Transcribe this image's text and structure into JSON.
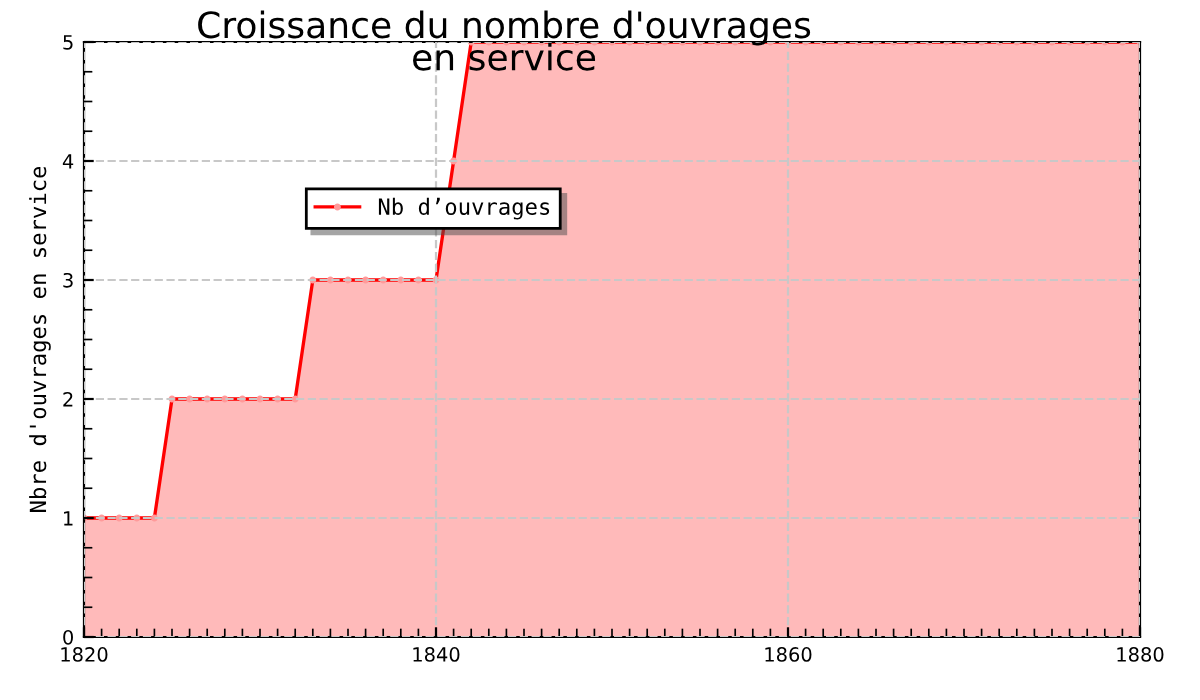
{
  "chart_data": {
    "type": "area",
    "title": "Croissance du nombre d'ouvrages\nen service",
    "ylabel": "Nbre d'ouvrages en service",
    "x": [
      1820,
      1821,
      1822,
      1823,
      1824,
      1825,
      1826,
      1827,
      1828,
      1829,
      1830,
      1831,
      1832,
      1833,
      1834,
      1835,
      1836,
      1837,
      1838,
      1839,
      1840,
      1841,
      1842,
      1843,
      1844,
      1845,
      1846,
      1847,
      1848,
      1849,
      1850,
      1851,
      1852,
      1853,
      1854,
      1855,
      1856,
      1857,
      1858,
      1859,
      1860,
      1861,
      1862,
      1863,
      1864,
      1865,
      1866,
      1867,
      1868,
      1869,
      1870,
      1871,
      1872,
      1873,
      1874,
      1875,
      1876,
      1877,
      1878,
      1879,
      1880
    ],
    "series": [
      {
        "name": "Nb d’ouvrages",
        "color": "#ff0000",
        "values": [
          1,
          1,
          1,
          1,
          1,
          2,
          2,
          2,
          2,
          2,
          2,
          2,
          2,
          3,
          3,
          3,
          3,
          3,
          3,
          3,
          3,
          4,
          5,
          5,
          5,
          5,
          5,
          5,
          5,
          5,
          5,
          5,
          5,
          5,
          5,
          5,
          5,
          5,
          5,
          5,
          5,
          5,
          5,
          5,
          5,
          5,
          5,
          5,
          5,
          5,
          5,
          5,
          5,
          5,
          5,
          5,
          5,
          5,
          5,
          5,
          5
        ]
      }
    ],
    "xlim": [
      1820,
      1880
    ],
    "xticks": [
      1820,
      1840,
      1860,
      1880
    ],
    "ylim": [
      0,
      5
    ],
    "yticks": [
      0,
      1,
      2,
      3,
      4,
      5
    ],
    "grid": true,
    "legend": "left",
    "marker": "circle",
    "line_style": "solid"
  }
}
